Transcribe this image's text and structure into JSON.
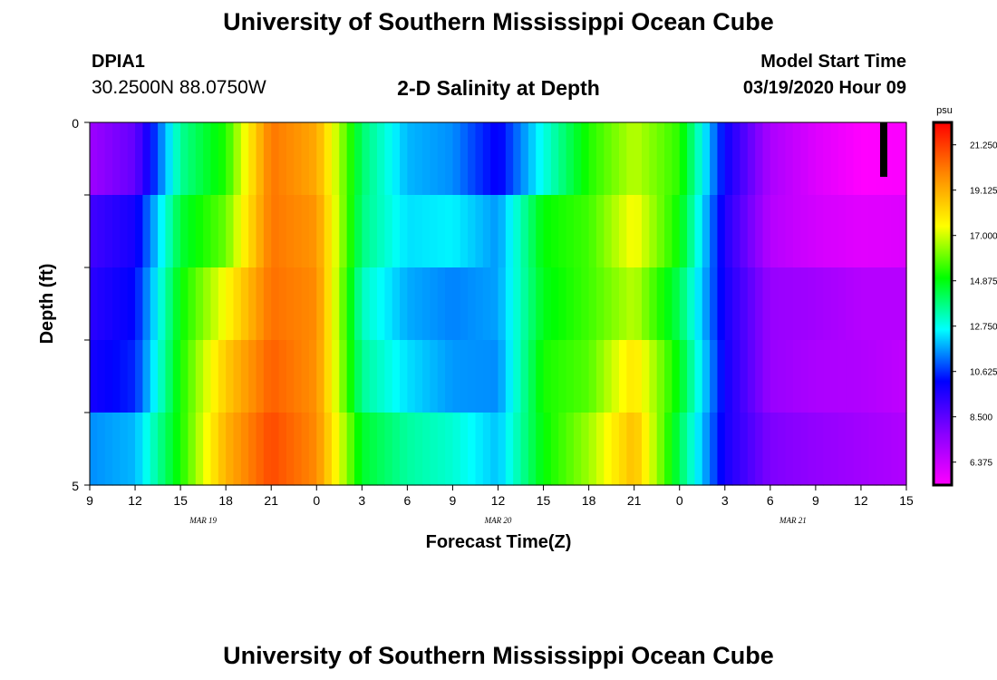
{
  "header": {
    "title": "University of Southern Mississippi Ocean Cube",
    "station_id": "DPIA1",
    "station_coords": "30.2500N 88.0750W",
    "model_start_label": "Model Start Time",
    "model_start_value": "03/19/2020 Hour 09"
  },
  "footer": {
    "title": "University of Southern Mississippi Ocean Cube"
  },
  "chart_data": {
    "type": "heatmap",
    "title": "2-D Salinity at Depth",
    "xlabel": "Forecast Time(Z)",
    "ylabel": "Depth (ft)",
    "x_tick_labels": [
      "9",
      "12",
      "15",
      "18",
      "21",
      "0",
      "3",
      "6",
      "9",
      "12",
      "15",
      "18",
      "21",
      "0",
      "3",
      "6",
      "9",
      "12",
      "15"
    ],
    "date_labels": [
      {
        "label": "MAR 19",
        "tick_index": 2.5
      },
      {
        "label": "MAR 20",
        "tick_index": 9
      },
      {
        "label": "MAR 21",
        "tick_index": 15.5
      }
    ],
    "y_tick_labels": {
      "top": "0",
      "bottom": "5"
    },
    "x_range_hours": [
      0,
      54
    ],
    "hours_since_start": [
      0,
      3,
      6,
      9,
      12,
      15,
      18,
      21,
      24,
      27,
      30,
      33,
      36,
      39,
      42,
      45,
      48,
      51,
      54
    ],
    "depth_levels_ft": [
      0,
      1,
      2,
      3,
      4
    ],
    "depth_range_ft": [
      0,
      5
    ],
    "salinity_psu": [
      [
        7.3,
        8.4,
        13.6,
        15.3,
        20.2,
        19.2,
        14.0,
        11.9,
        11.5,
        10.0,
        12.8,
        15.3,
        16.8,
        15.4,
        10.0,
        7.0,
        6.0,
        5.3,
        5.4
      ],
      [
        9.0,
        9.8,
        14.5,
        16.0,
        20.2,
        19.6,
        13.8,
        12.3,
        12.5,
        11.6,
        15.0,
        15.6,
        17.5,
        15.0,
        9.6,
        6.8,
        6.2,
        5.9,
        6.0
      ],
      [
        9.4,
        10.2,
        15.0,
        17.5,
        20.3,
        19.8,
        13.2,
        11.8,
        11.4,
        11.7,
        14.8,
        15.6,
        16.8,
        14.2,
        9.8,
        7.4,
        7.2,
        6.8,
        6.8
      ],
      [
        9.8,
        10.5,
        15.2,
        18.5,
        20.6,
        19.7,
        13.6,
        12.3,
        11.6,
        11.5,
        15.2,
        15.8,
        18.0,
        14.8,
        9.9,
        7.4,
        7.0,
        6.9,
        6.6
      ],
      [
        11.5,
        11.9,
        15.2,
        19.0,
        21.0,
        19.8,
        14.6,
        13.5,
        13.0,
        12.0,
        15.0,
        16.5,
        18.8,
        14.2,
        9.8,
        7.9,
        7.5,
        7.2,
        6.9
      ]
    ],
    "colorbar": {
      "unit": "psu",
      "min": 5.3,
      "max": 22.3,
      "tick_values": [
        21.25,
        19.125,
        17.0,
        14.875,
        12.75,
        10.625,
        8.5,
        6.375
      ],
      "tick_labels": [
        "21.250",
        "19.125",
        "17.000",
        "14.875",
        "12.750",
        "10.625",
        "8.500",
        "6.375"
      ],
      "colors": [
        "#ff00ff",
        "#8800ff",
        "#0000ff",
        "#00ffff",
        "#00ff00",
        "#ffff00",
        "#ff8800",
        "#ff0000"
      ]
    },
    "current_time_marker_hour": 52.5,
    "grid": false,
    "legend": "colorbar-right"
  }
}
